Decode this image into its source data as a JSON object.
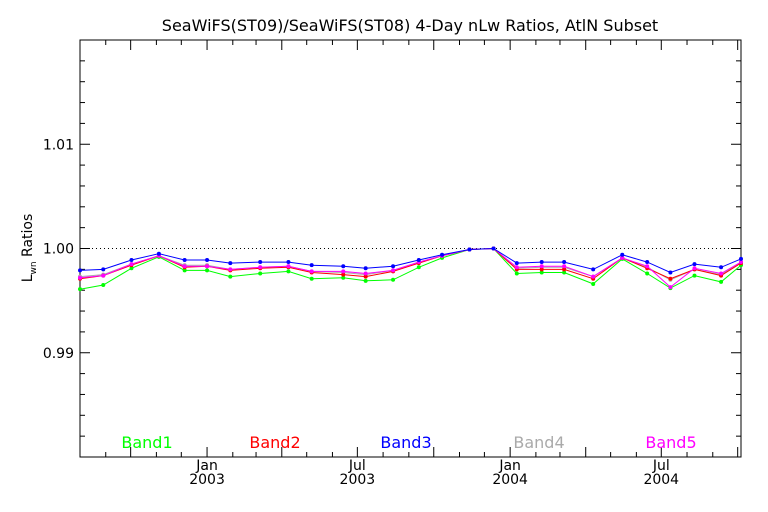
{
  "chart_data": {
    "type": "line",
    "title": "SeaWiFS(ST09)/SeaWiFS(ST08) 4-Day nLw Ratios, AtlN Subset",
    "ylabel_main": "L",
    "ylabel_sub": "wn",
    "ylabel_rest": " Ratios",
    "xlabel": "",
    "ylim": [
      0.98,
      1.02
    ],
    "y_ticks": [
      "0.99",
      "1.00",
      "1.01"
    ],
    "y_tick_values": [
      0.99,
      1.0,
      1.01
    ],
    "x_range": [
      "2002-08-01",
      "2004-10-05"
    ],
    "x_ticks": [
      {
        "date": "2003-01-01",
        "month": "Jan",
        "year": "2003"
      },
      {
        "date": "2003-07-01",
        "month": "Jul",
        "year": "2003"
      },
      {
        "date": "2004-01-01",
        "month": "Jan",
        "year": "2004"
      },
      {
        "date": "2004-07-01",
        "month": "Jul",
        "year": "2004"
      }
    ],
    "reference_line": 1.0,
    "grid": false,
    "legend_placement": "bottom",
    "x": [
      "2002-08-01",
      "2002-08-29",
      "2002-10-02",
      "2002-11-04",
      "2002-12-05",
      "2003-01-01",
      "2003-01-29",
      "2003-03-06",
      "2003-04-09",
      "2003-05-07",
      "2003-06-14",
      "2003-07-11",
      "2003-08-13",
      "2003-09-13",
      "2003-10-11",
      "2003-11-13",
      "2003-12-12",
      "2004-01-09",
      "2004-02-08",
      "2004-03-06",
      "2004-04-10",
      "2004-05-15",
      "2004-06-14",
      "2004-07-12",
      "2004-08-10",
      "2004-09-11",
      "2004-10-05"
    ],
    "series": [
      {
        "name": "Band1",
        "color": "#00ff00",
        "values": [
          0.9961,
          0.9965,
          0.9981,
          0.9992,
          0.9979,
          0.9979,
          0.9973,
          0.9976,
          0.9978,
          0.9971,
          0.9972,
          0.9969,
          0.997,
          0.9982,
          0.9991,
          0.9999,
          1.0,
          0.9976,
          0.9977,
          0.9977,
          0.9966,
          0.999,
          0.9976,
          0.9962,
          0.9974,
          0.9968,
          0.9984
        ]
      },
      {
        "name": "Band2",
        "color": "#ff0000",
        "values": [
          0.9971,
          0.9974,
          0.9984,
          0.9993,
          0.9982,
          0.9983,
          0.9979,
          0.9981,
          0.9982,
          0.9977,
          0.9975,
          0.9973,
          0.9978,
          0.9986,
          0.9993,
          0.9999,
          1.0,
          0.998,
          0.998,
          0.998,
          0.9971,
          0.9991,
          0.9981,
          0.9971,
          0.998,
          0.9974,
          0.9986
        ]
      },
      {
        "name": "Band3",
        "color": "#0000ff",
        "values": [
          0.9979,
          0.998,
          0.9989,
          0.9995,
          0.9989,
          0.9989,
          0.9986,
          0.9987,
          0.9987,
          0.9984,
          0.9983,
          0.9981,
          0.9983,
          0.9989,
          0.9994,
          0.9999,
          1.0,
          0.9986,
          0.9987,
          0.9987,
          0.998,
          0.9994,
          0.9987,
          0.9977,
          0.9985,
          0.9982,
          0.999
        ]
      },
      {
        "name": "Band4",
        "color": "#aaaaaa",
        "values": [
          0.9973,
          0.9975,
          0.9985,
          0.9993,
          0.9984,
          0.9984,
          0.998,
          0.9982,
          0.9983,
          0.9978,
          0.9977,
          0.9975,
          0.9979,
          0.9987,
          0.9993,
          0.9999,
          1.0,
          0.9981,
          0.9982,
          0.9982,
          0.9973,
          0.9991,
          0.9982,
          0.997,
          0.998,
          0.9975,
          0.9987
        ]
      },
      {
        "name": "Band5",
        "color": "#ff00ff",
        "values": [
          0.9972,
          0.9974,
          0.9985,
          0.9993,
          0.9983,
          0.9983,
          0.998,
          0.9982,
          0.9983,
          0.9978,
          0.9978,
          0.9976,
          0.9979,
          0.9987,
          0.9993,
          0.9999,
          1.0,
          0.9982,
          0.9983,
          0.9983,
          0.9973,
          0.9991,
          0.9983,
          0.9963,
          0.9981,
          0.9976,
          0.9987
        ]
      }
    ]
  }
}
